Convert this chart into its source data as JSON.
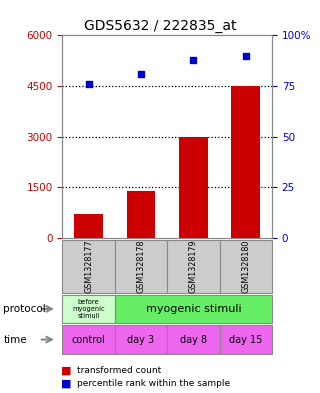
{
  "title": "GDS5632 / 222835_at",
  "samples": [
    "GSM1328177",
    "GSM1328178",
    "GSM1328179",
    "GSM1328180"
  ],
  "bar_values": [
    700,
    1400,
    3000,
    4500
  ],
  "scatter_values": [
    76,
    81,
    88,
    90
  ],
  "ylim_left": [
    0,
    6000
  ],
  "ylim_right": [
    0,
    100
  ],
  "yticks_left": [
    0,
    1500,
    3000,
    4500,
    6000
  ],
  "yticks_right": [
    0,
    25,
    50,
    75,
    100
  ],
  "ytick_labels_right": [
    "0",
    "25",
    "50",
    "75",
    "100%"
  ],
  "bar_color": "#cc0000",
  "scatter_color": "#0000cc",
  "left_tick_color": "#cc0000",
  "right_tick_color": "#0000cc",
  "protocol_label_0": "before\nmyogenic\nstimuli",
  "protocol_label_1": "myogenic stimuli",
  "protocol_color_0": "#ccffcc",
  "protocol_color_1": "#66ee66",
  "time_labels": [
    "control",
    "day 3",
    "day 8",
    "day 15"
  ],
  "time_color": "#ee66ee",
  "sample_bg_color": "#cccccc",
  "legend_bar_label": "transformed count",
  "legend_scatter_label": "percentile rank within the sample",
  "dotted_yvals": [
    1500,
    3000,
    4500
  ],
  "left_label": "protocol",
  "left_label2": "time"
}
